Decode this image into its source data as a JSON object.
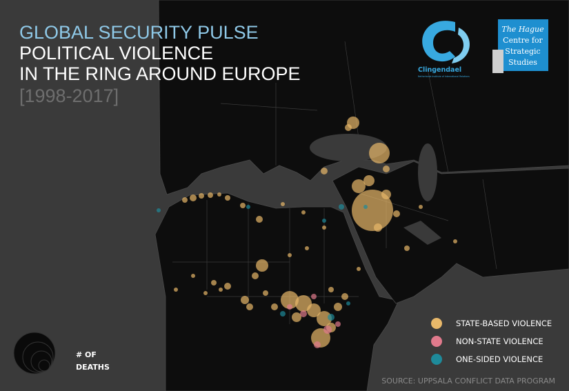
{
  "header": {
    "kicker": "GLOBAL SECURITY PULSE",
    "title_lines": [
      "POLITICAL VIOLENCE",
      "IN THE RING AROUND EUROPE"
    ],
    "period": "[1998-2017]"
  },
  "logos": {
    "clingendael": {
      "name": "Clingendael",
      "tagline": "Netherlands Institute of International Relations"
    },
    "hcss": {
      "lines": [
        "The Hague",
        "Centre for",
        "Strategic",
        "Studies"
      ]
    }
  },
  "legend": {
    "items": [
      {
        "label": "STATE-BASED VIOLENCE",
        "color": "#e8b86a"
      },
      {
        "label": "NON-STATE VIOLENCE",
        "color": "#e07a8c"
      },
      {
        "label": "ONE-SIDED VIOLENCE",
        "color": "#1e8a9a"
      }
    ]
  },
  "size_legend": {
    "lines": [
      "# OF",
      "DEATHS"
    ]
  },
  "source": "SOURCE: UPPSALA CONFLICT DATA PROGRAM"
}
